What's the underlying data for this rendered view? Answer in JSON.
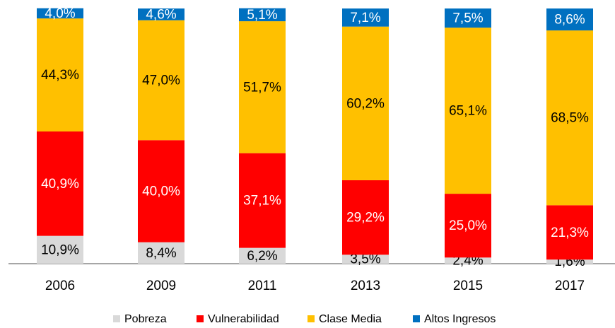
{
  "chart_data": {
    "type": "stacked_bar",
    "categories": [
      "2006",
      "2009",
      "2011",
      "2013",
      "2015",
      "2017"
    ],
    "ylim": [
      0,
      100
    ],
    "series": [
      {
        "name": "Pobreza",
        "color": "#d9d9d9",
        "label_color": "#000000",
        "values": [
          10.9,
          8.4,
          6.2,
          3.5,
          2.4,
          1.6
        ],
        "value_labels": [
          "10,9%",
          "8,4%",
          "6,2%",
          "3,5%",
          "2,4%",
          "1,6%"
        ]
      },
      {
        "name": "Vulnerabilidad",
        "color": "#ff0000",
        "label_color": "#ffffff",
        "values": [
          40.9,
          40.0,
          37.1,
          29.2,
          25.0,
          21.3
        ],
        "value_labels": [
          "40,9%",
          "40,0%",
          "37,1%",
          "29,2%",
          "25,0%",
          "21,3%"
        ]
      },
      {
        "name": "Clase Media",
        "color": "#ffc000",
        "label_color": "#000000",
        "values": [
          44.3,
          47.0,
          51.7,
          60.2,
          65.1,
          68.5
        ],
        "value_labels": [
          "44,3%",
          "47,0%",
          "51,7%",
          "60,2%",
          "65,1%",
          "68,5%"
        ]
      },
      {
        "name": "Altos Ingresos",
        "color": "#0070c0",
        "label_color": "#ffffff",
        "values": [
          4.0,
          4.6,
          5.1,
          7.1,
          7.5,
          8.6
        ],
        "value_labels": [
          "4,0%",
          "4,6%",
          "5,1%",
          "7,1%",
          "7,5%",
          "8,6%"
        ]
      }
    ]
  }
}
